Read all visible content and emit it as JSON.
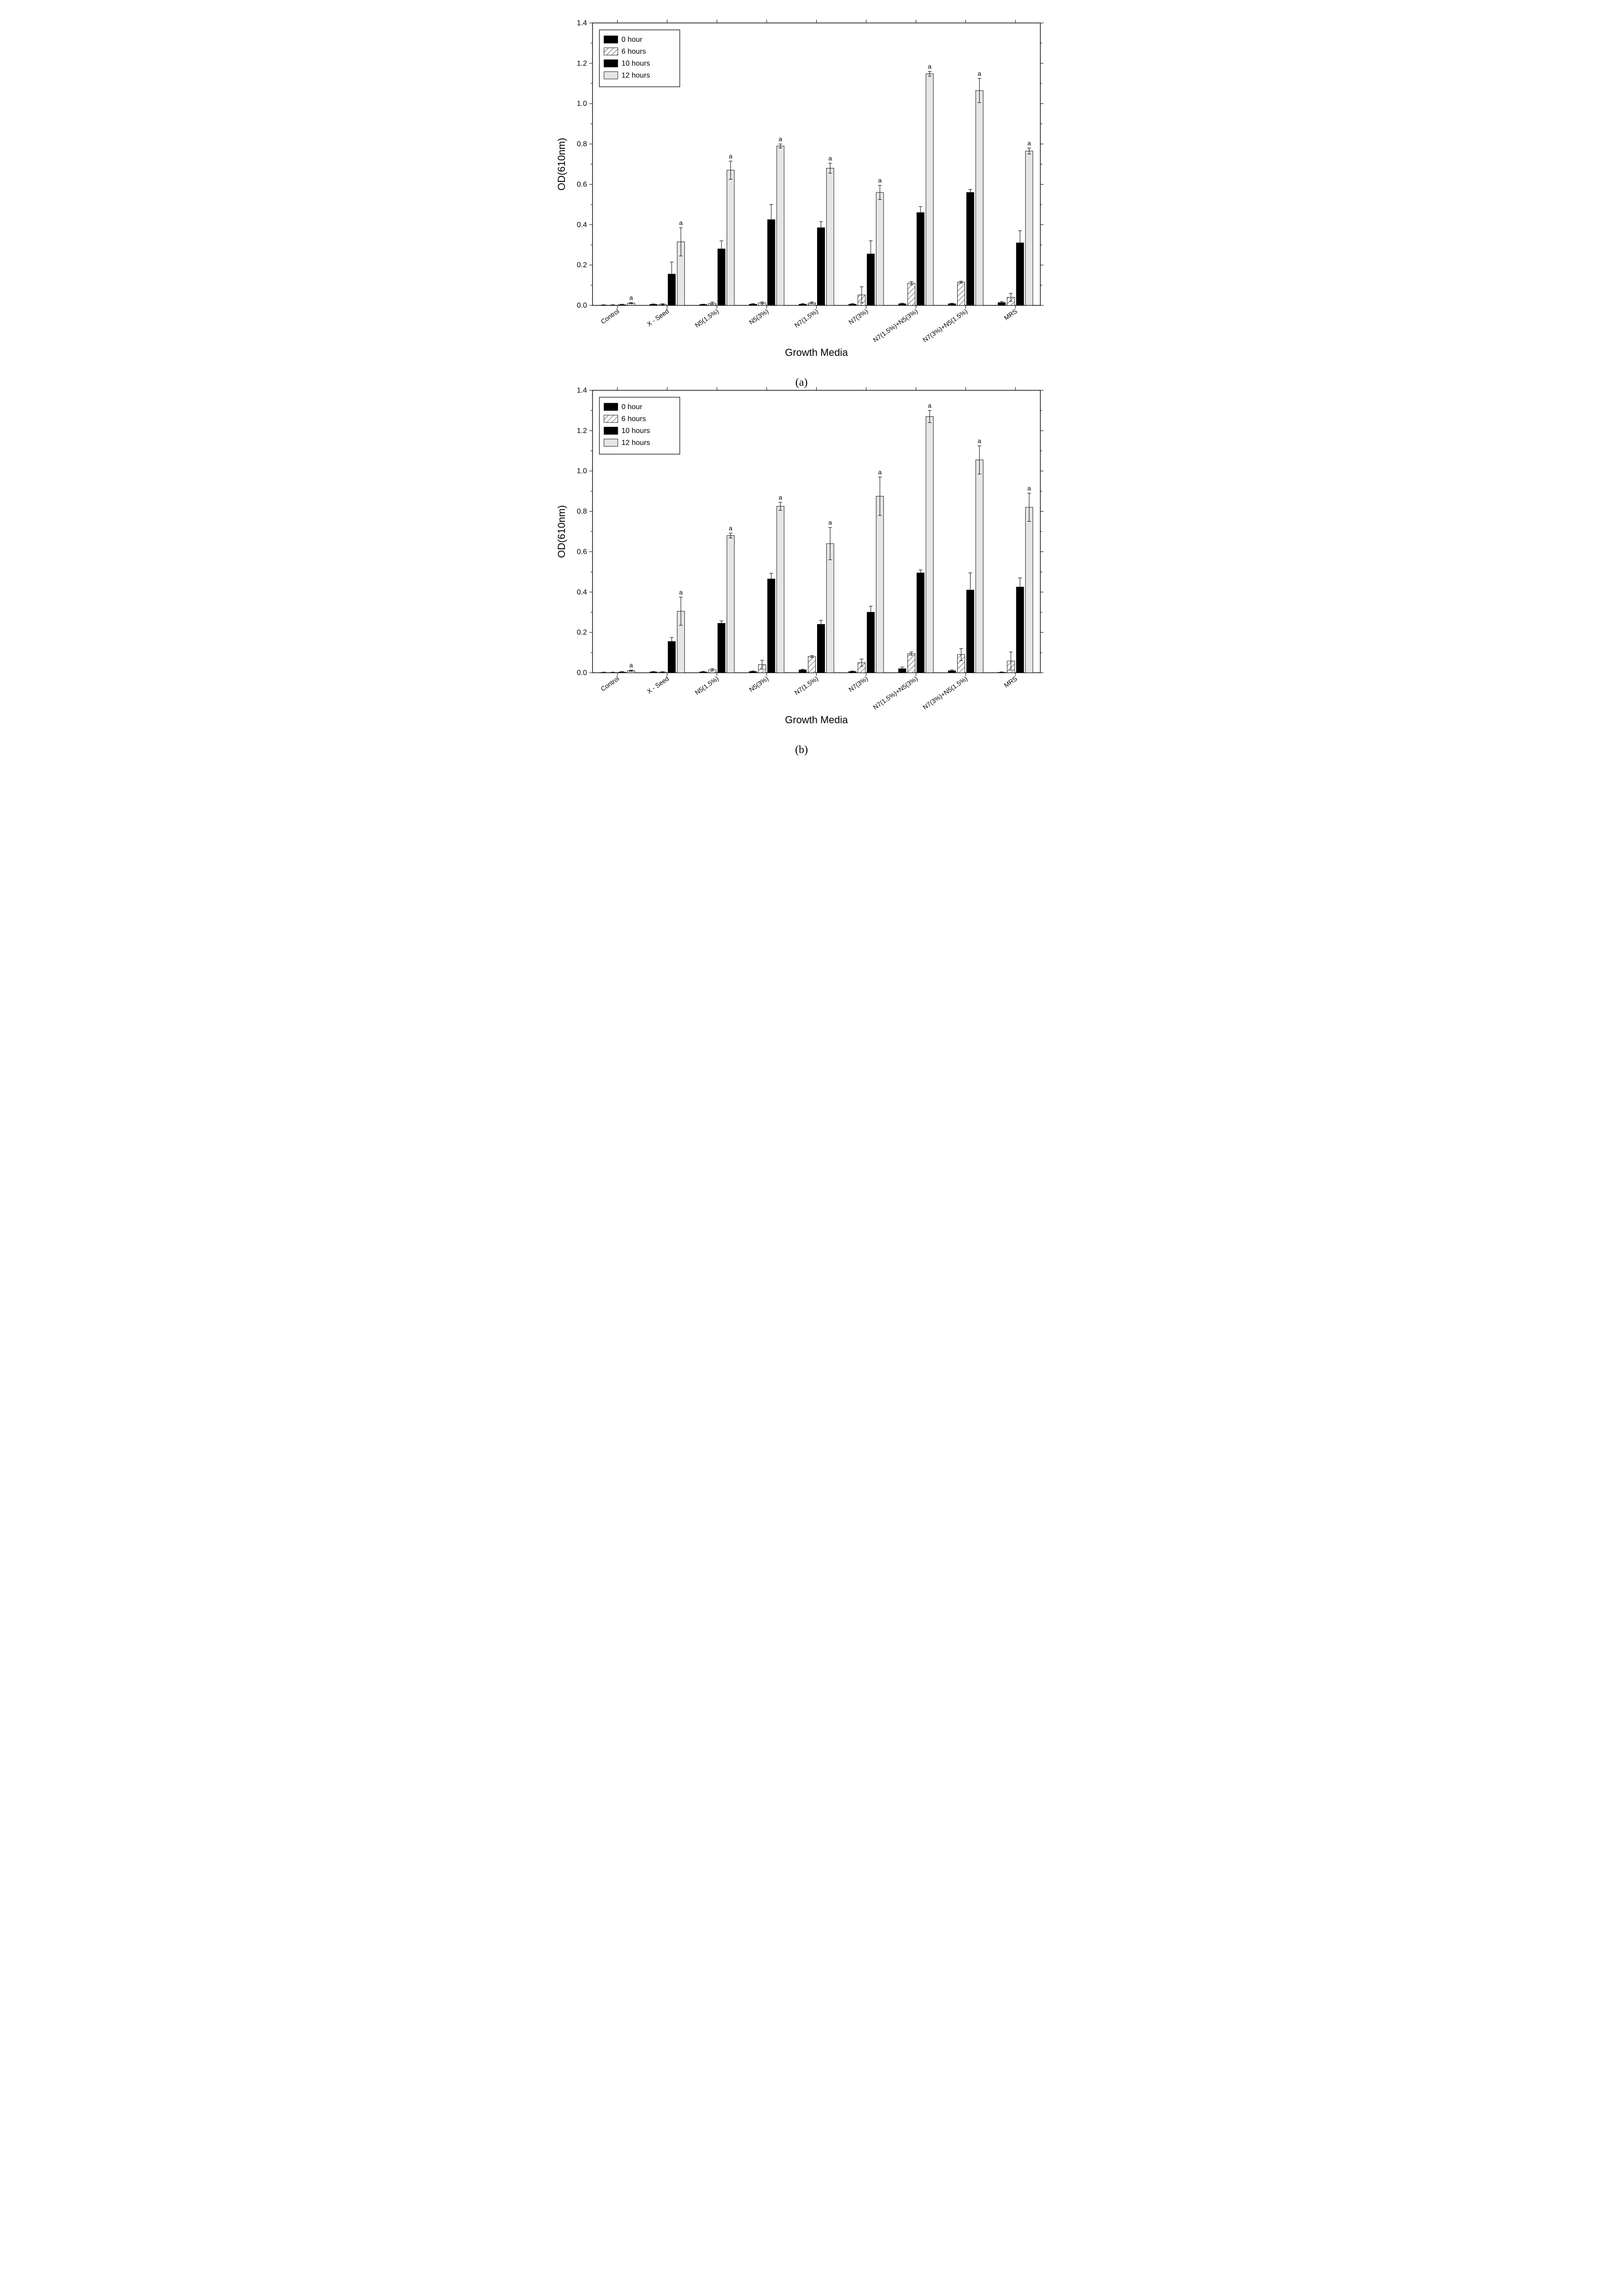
{
  "charts": [
    {
      "panel_label": "(a)",
      "type": "bar",
      "ylabel": "OD(610nm)",
      "xlabel": "Growth Media",
      "ylim": [
        0.0,
        1.4
      ],
      "ytick_step": 0.2,
      "categories": [
        "Control",
        "X - Seed",
        "N5(1.5%)",
        "N5(3%)",
        "N7(1.5%)",
        "N7(3%)",
        "N7(1.5%)+N5(3%)",
        "N7(3%)+N5(1.5%)",
        "MRS"
      ],
      "legend": [
        "0 hour",
        "6 hours",
        "10 hours",
        "12 hours"
      ],
      "series_fill": [
        "solid_black",
        "hatch",
        "solid_black",
        "light_gray"
      ],
      "colors": {
        "solid_black": "#000000",
        "light_gray": "#e6e6e6",
        "bg": "#ffffff",
        "axis": "#000000"
      },
      "bar_group_width": 0.7,
      "bar_gap_ratio": 0.05,
      "data": {
        "0 hour": {
          "values": [
            0.001,
            0.005,
            0.004,
            0.006,
            0.006,
            0.006,
            0.008,
            0.008,
            0.014
          ],
          "err": [
            0.002,
            0.002,
            0.002,
            0.003,
            0.003,
            0.003,
            0.003,
            0.003,
            0.005
          ]
        },
        "6 hours": {
          "values": [
            0.001,
            0.005,
            0.01,
            0.012,
            0.012,
            0.052,
            0.11,
            0.115,
            0.04
          ],
          "err": [
            0.002,
            0.003,
            0.006,
            0.005,
            0.005,
            0.04,
            0.008,
            0.005,
            0.02
          ]
        },
        "10 hours": {
          "values": [
            0.003,
            0.155,
            0.28,
            0.425,
            0.385,
            0.255,
            0.46,
            0.56,
            0.31
          ],
          "err": [
            0.003,
            0.06,
            0.04,
            0.075,
            0.03,
            0.065,
            0.03,
            0.015,
            0.06
          ]
        },
        "12 hours": {
          "values": [
            0.011,
            0.315,
            0.67,
            0.79,
            0.68,
            0.56,
            1.148,
            1.065,
            0.765
          ],
          "err": [
            0.003,
            0.07,
            0.045,
            0.01,
            0.025,
            0.035,
            0.012,
            0.06,
            0.015
          ],
          "sig": [
            "a",
            "a",
            "a",
            "a",
            "a",
            "a",
            "a",
            "a",
            "a"
          ]
        }
      },
      "label_fontsize": 22,
      "tick_fontsize_y": 16,
      "tick_fontsize_x": 14,
      "x_tick_rotation": 35
    },
    {
      "panel_label": "(b)",
      "type": "bar",
      "ylabel": "OD(610nm)",
      "xlabel": "Growth Media",
      "ylim": [
        0.0,
        1.4
      ],
      "ytick_step": 0.2,
      "categories": [
        "Control",
        "X - Seed",
        "N5(1.5%)",
        "N5(3%)",
        "N7(1.5%)",
        "N7(3%)",
        "N7(1.5%)+N5(3%)",
        "N7(3%)+N5(1.5%)",
        "MRS"
      ],
      "legend": [
        "0 hour",
        "6 hours",
        "10 hours",
        "12 hours"
      ],
      "series_fill": [
        "solid_black",
        "hatch",
        "solid_black",
        "light_gray"
      ],
      "colors": {
        "solid_black": "#000000",
        "light_gray": "#e6e6e6",
        "bg": "#ffffff",
        "axis": "#000000"
      },
      "bar_group_width": 0.7,
      "bar_gap_ratio": 0.05,
      "data": {
        "0 hour": {
          "values": [
            0.001,
            0.004,
            0.004,
            0.006,
            0.014,
            0.006,
            0.02,
            0.01,
            0.002
          ],
          "err": [
            0.002,
            0.002,
            0.003,
            0.003,
            0.003,
            0.003,
            0.008,
            0.004,
            0.002
          ]
        },
        "6 hours": {
          "values": [
            0.001,
            0.003,
            0.015,
            0.04,
            0.08,
            0.05,
            0.095,
            0.09,
            0.058
          ],
          "err": [
            0.002,
            0.002,
            0.006,
            0.022,
            0.005,
            0.018,
            0.008,
            0.03,
            0.045
          ]
        },
        "10 hours": {
          "values": [
            0.003,
            0.155,
            0.245,
            0.465,
            0.24,
            0.3,
            0.495,
            0.41,
            0.425
          ],
          "err": [
            0.003,
            0.02,
            0.012,
            0.028,
            0.02,
            0.03,
            0.015,
            0.085,
            0.045
          ]
        },
        "12 hours": {
          "values": [
            0.01,
            0.305,
            0.68,
            0.825,
            0.64,
            0.875,
            1.27,
            1.055,
            0.82
          ],
          "err": [
            0.003,
            0.07,
            0.012,
            0.02,
            0.08,
            0.095,
            0.03,
            0.07,
            0.07
          ],
          "sig": [
            "a",
            "a",
            "a",
            "a",
            "a",
            "a",
            "a",
            "a",
            "a"
          ]
        }
      },
      "label_fontsize": 22,
      "tick_fontsize_y": 16,
      "tick_fontsize_x": 14,
      "x_tick_rotation": 35
    }
  ]
}
